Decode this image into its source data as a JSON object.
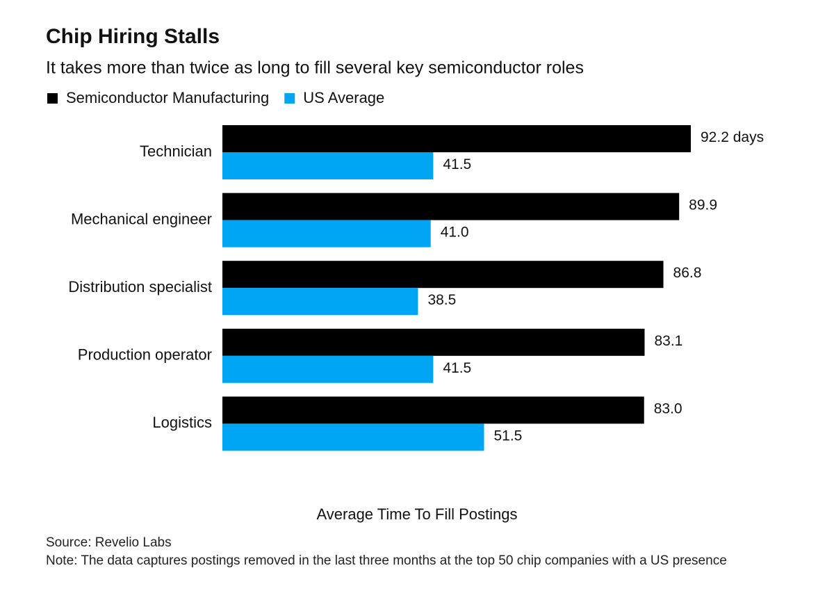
{
  "chart_data": {
    "type": "bar",
    "orientation": "horizontal",
    "title": "Chip Hiring Stalls",
    "subtitle": "It takes more than twice as long to fill several key semiconductor roles",
    "x_label": "Average Time To Fill Postings",
    "categories": [
      "Technician",
      "Mechanical engineer",
      "Distribution specialist",
      "Production operator",
      "Logistics"
    ],
    "series": [
      {
        "name": "Semiconductor Manufacturing",
        "color": "#000000",
        "values": [
          92.2,
          89.9,
          86.8,
          83.1,
          83.0
        ],
        "value_labels": [
          "92.2 days",
          "89.9",
          "86.8",
          "83.1",
          "83.0"
        ]
      },
      {
        "name": "US Average",
        "color": "#00a6f4",
        "values": [
          41.5,
          41.0,
          38.5,
          41.5,
          51.5
        ],
        "value_labels": [
          "41.5",
          "41.0",
          "38.5",
          "41.5",
          "51.5"
        ]
      }
    ],
    "legend": "top-left",
    "source": "Source: Revelio Labs",
    "note": "Note: The data captures postings removed in the last three months at the top 50 chip companies with a US presence"
  }
}
